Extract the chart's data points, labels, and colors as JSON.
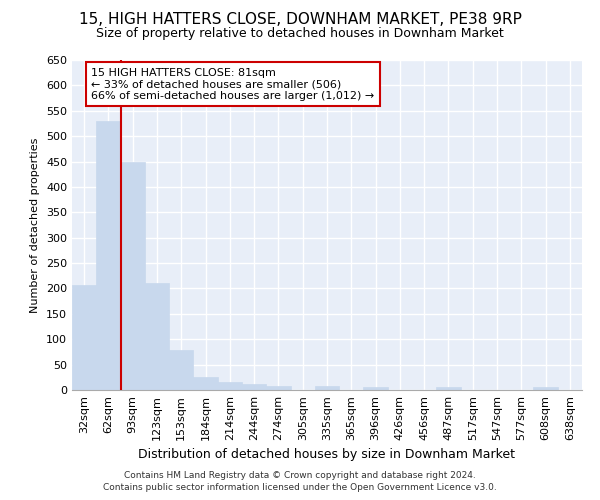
{
  "title": "15, HIGH HATTERS CLOSE, DOWNHAM MARKET, PE38 9RP",
  "subtitle": "Size of property relative to detached houses in Downham Market",
  "xlabel": "Distribution of detached houses by size in Downham Market",
  "ylabel": "Number of detached properties",
  "bar_color": "#c8d8ed",
  "bar_edge_color": "#c8d8ed",
  "background_color": "#e8eef8",
  "grid_color": "#ffffff",
  "fig_background": "#ffffff",
  "categories": [
    "32sqm",
    "62sqm",
    "93sqm",
    "123sqm",
    "153sqm",
    "184sqm",
    "214sqm",
    "244sqm",
    "274sqm",
    "305sqm",
    "335sqm",
    "365sqm",
    "396sqm",
    "426sqm",
    "456sqm",
    "487sqm",
    "517sqm",
    "547sqm",
    "577sqm",
    "608sqm",
    "638sqm"
  ],
  "values": [
    207,
    530,
    450,
    211,
    78,
    26,
    15,
    12,
    8,
    0,
    8,
    0,
    6,
    0,
    0,
    5,
    0,
    0,
    0,
    5,
    0
  ],
  "ylim": [
    0,
    650
  ],
  "yticks": [
    0,
    50,
    100,
    150,
    200,
    250,
    300,
    350,
    400,
    450,
    500,
    550,
    600,
    650
  ],
  "property_line_x": 2.0,
  "annotation_text": "15 HIGH HATTERS CLOSE: 81sqm\n← 33% of detached houses are smaller (506)\n66% of semi-detached houses are larger (1,012) →",
  "annotation_box_color": "#ffffff",
  "annotation_box_edgecolor": "#cc0000",
  "property_line_color": "#cc0000",
  "title_fontsize": 11,
  "subtitle_fontsize": 9,
  "ylabel_fontsize": 8,
  "xlabel_fontsize": 9,
  "tick_fontsize": 8,
  "footer_line1": "Contains HM Land Registry data © Crown copyright and database right 2024.",
  "footer_line2": "Contains public sector information licensed under the Open Government Licence v3.0."
}
